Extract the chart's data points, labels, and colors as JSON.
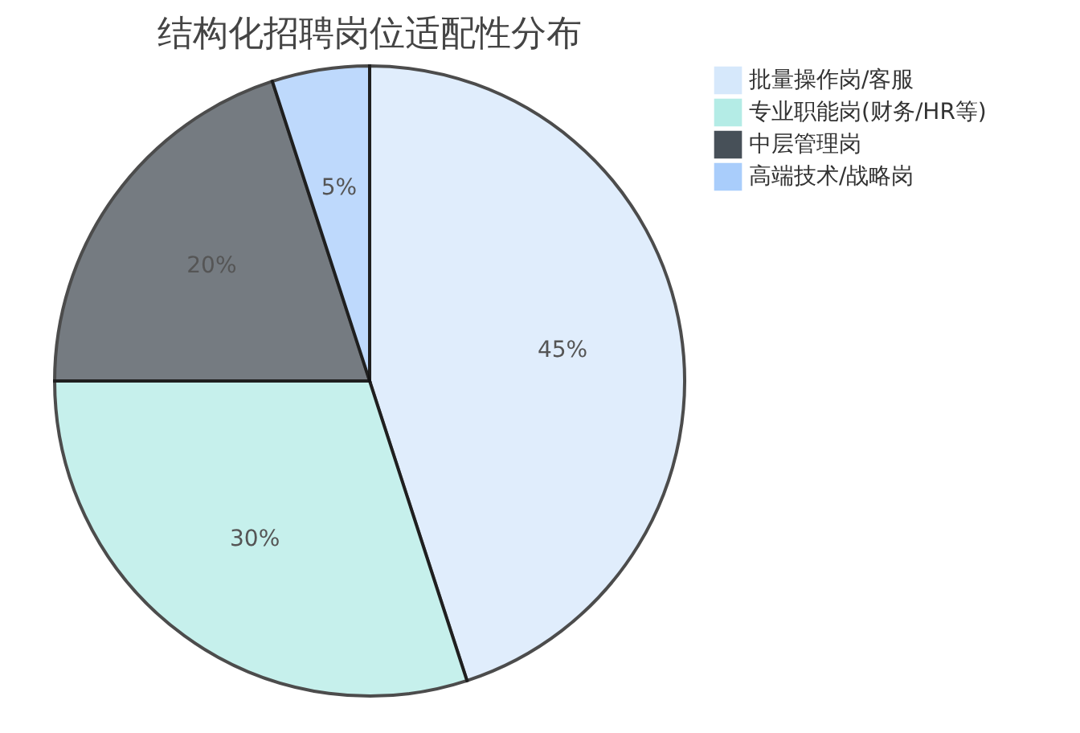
{
  "chart_data": {
    "type": "pie",
    "title": "结构化招聘岗位适配性分布",
    "categories": [
      "批量操作岗/客服",
      "专业职能岗(财务/HR等)",
      "中层管理岗",
      "高端技术/战略岗"
    ],
    "values": [
      45,
      30,
      20,
      5
    ],
    "colors": [
      "#d6e8fb",
      "#b4ece6",
      "#475058",
      "#a9cdfb"
    ],
    "value_labels": [
      "45%",
      "30%",
      "20%",
      "5%"
    ],
    "legend": "right"
  }
}
